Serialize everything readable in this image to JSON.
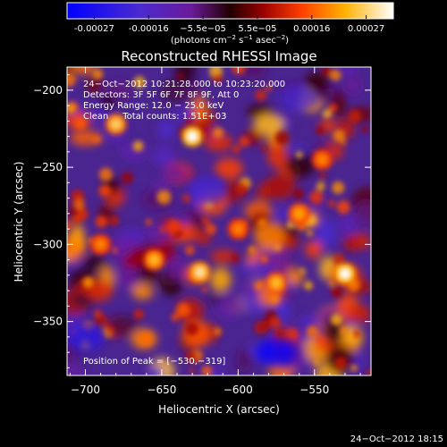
{
  "colorbar": {
    "ticks": [
      "-0.00027",
      "-0.00016",
      "−5.5e−05",
      "5.5e−05",
      "0.00016",
      "0.00027"
    ],
    "units_prefix": "(photons cm",
    "units_sup1": "−2",
    "units_mid1": " s",
    "units_sup2": "−1",
    "units_mid2": " asec",
    "units_sup3": "−2",
    "units_suffix": ")"
  },
  "header": {
    "title": "Reconstructed RHESSI Image",
    "lines": [
      "24−Oct−2012 10:21:28.000 to 10:23:20.000",
      "Detectors: 3F 5F 6F 7F 8F 9F, Att 0",
      "Energy Range: 12.0 − 25.0 keV",
      "Clean     Total counts: 1.51E+03"
    ],
    "peak_label": "Position of Peak = [−530,−319]"
  },
  "footer": {
    "timestamp": "24−Oct−2012 18:15"
  },
  "colors": {
    "low": "#1010e0",
    "mid": "#5a2ea0",
    "high": "#ff7a00",
    "peak": "#ffffd0"
  },
  "chart_data": {
    "type": "heatmap",
    "title": "Reconstructed RHESSI Image",
    "xlabel": "Heliocentric X (arcsec)",
    "ylabel": "Heliocentric Y (arcsec)",
    "xlim": [
      -712,
      -513
    ],
    "ylim": [
      -385,
      -185
    ],
    "xticks": [
      -700,
      -650,
      -600,
      -550
    ],
    "yticks": [
      -350,
      -300,
      -250,
      -200
    ],
    "xtick_labels": [
      "−700",
      "−650",
      "−600",
      "−550"
    ],
    "ytick_labels": [
      "−350",
      "−300",
      "−250",
      "−200"
    ],
    "zlim": [
      -0.00027,
      0.00027
    ],
    "peak_position": [
      -530,
      -319
    ],
    "grid": false,
    "bright_sources": [
      {
        "x": -630,
        "y": -230,
        "value": 0.00027
      },
      {
        "x": -680,
        "y": -222,
        "value": 0.00022
      },
      {
        "x": -530,
        "y": -319,
        "value": 0.00027
      },
      {
        "x": -625,
        "y": -318,
        "value": 0.00024
      },
      {
        "x": -655,
        "y": -310,
        "value": 0.0002
      },
      {
        "x": -575,
        "y": -325,
        "value": 0.0002
      },
      {
        "x": -545,
        "y": -245,
        "value": 0.00016
      },
      {
        "x": -560,
        "y": -280,
        "value": 0.00018
      },
      {
        "x": -600,
        "y": -290,
        "value": 0.00016
      },
      {
        "x": -690,
        "y": -300,
        "value": 0.00016
      }
    ],
    "dark_sources": [
      {
        "x": -575,
        "y": -370,
        "value": -0.00027
      },
      {
        "x": -700,
        "y": -360,
        "value": -0.0002
      },
      {
        "x": -620,
        "y": -265,
        "value": -0.00016
      },
      {
        "x": -560,
        "y": -205,
        "value": -0.00016
      }
    ]
  }
}
